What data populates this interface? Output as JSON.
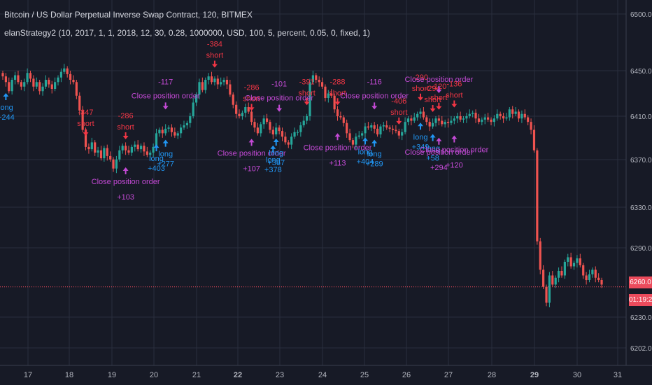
{
  "header": {
    "symbol_title": "Bitcoin / US Dollar Perpetual Inverse Swap Contract, 120, BITMEX",
    "study_title": "elanStrategy2 (10, 2017, 1, 1, 2018, 12, 30, 0.28, 1000000, USD, 100, 5, percent, 0.05, 0, fixed, 1)"
  },
  "price_axis": {
    "current_price_label": "6260.0",
    "countdown_label": "01:19:23"
  },
  "colors": {
    "background": "#171a26",
    "grid": "#2a2e3d",
    "up_candle": "#26a69a",
    "down_candle": "#ef5350",
    "long_signal": "#2196f3",
    "short_signal": "#f23645",
    "close_signal": "#c44ad6",
    "price_line": "#ec4b5c"
  },
  "chart_data": {
    "type": "candlestick",
    "title": "Bitcoin / US Dollar Perpetual Inverse Swap Contract, 120, BITMEX",
    "interval": "120",
    "xlabel": "",
    "ylabel": "",
    "ylim": [
      6195,
      6510
    ],
    "y_ticks": [
      "6500.0",
      "6450.0",
      "6410.0",
      "6370.0",
      "6330.0",
      "6290.0",
      "6230.0",
      "6202.0"
    ],
    "x_ticks": [
      "17",
      "18",
      "19",
      "20",
      "21",
      "22",
      "23",
      "24",
      "25",
      "26",
      "27",
      "28",
      "29",
      "30",
      "31"
    ],
    "grid": true,
    "current_price": 6260.0,
    "close_series": [
      6445,
      6440,
      6432,
      6442,
      6446,
      6440,
      6436,
      6440,
      6448,
      6443,
      6436,
      6440,
      6432,
      6436,
      6442,
      6438,
      6434,
      6440,
      6444,
      6449,
      6452,
      6447,
      6442,
      6440,
      6428,
      6415,
      6398,
      6383,
      6381,
      6387,
      6378,
      6380,
      6373,
      6382,
      6375,
      6372,
      6364,
      6372,
      6380,
      6384,
      6380,
      6378,
      6383,
      6385,
      6381,
      6384,
      6379,
      6376,
      6378,
      6383,
      6395,
      6398,
      6395,
      6399,
      6400,
      6396,
      6393,
      6395,
      6400,
      6402,
      6404,
      6410,
      6422,
      6429,
      6440,
      6433,
      6442,
      6445,
      6440,
      6443,
      6438,
      6440,
      6442,
      6438,
      6429,
      6420,
      6412,
      6410,
      6413,
      6418,
      6414,
      6405,
      6400,
      6395,
      6403,
      6408,
      6405,
      6398,
      6394,
      6400,
      6397,
      6392,
      6387,
      6385,
      6392,
      6396,
      6396,
      6402,
      6406,
      6410,
      6440,
      6446,
      6442,
      6440,
      6436,
      6426,
      6430,
      6428,
      6416,
      6410,
      6409,
      6404,
      6395,
      6389,
      6385,
      6392,
      6393,
      6395,
      6401,
      6400,
      6402,
      6399,
      6394,
      6401,
      6402,
      6400,
      6399,
      6398,
      6397,
      6393,
      6396,
      6405,
      6408,
      6406,
      6409,
      6412,
      6414,
      6409,
      6405,
      6401,
      6404,
      6408,
      6406,
      6403,
      6405,
      6404,
      6406,
      6408,
      6410,
      6407,
      6408,
      6410,
      6412,
      6413,
      6408,
      6405,
      6407,
      6409,
      6407,
      6405,
      6408,
      6412,
      6410,
      6408,
      6409,
      6416,
      6412,
      6414,
      6408,
      6412,
      6409,
      6405,
      6398,
      6380,
      6300,
      6275,
      6260,
      6246,
      6270,
      6262,
      6268,
      6274,
      6270,
      6282,
      6286,
      6278,
      6281,
      6285,
      6279,
      6270,
      6266,
      6271,
      6275,
      6268,
      6266,
      6262
    ],
    "signals": [
      {
        "type": "long",
        "label": "long",
        "profit": "+244",
        "bar": 1
      },
      {
        "type": "short",
        "label": "short",
        "profit": "-347",
        "bar": 27
      },
      {
        "type": "short",
        "label": "short",
        "profit": "-286",
        "bar": 40
      },
      {
        "type": "close",
        "label": "Close position order",
        "profit": "+103",
        "bar": 40
      },
      {
        "type": "long",
        "label": "long",
        "profit": "+403",
        "bar": 50
      },
      {
        "type": "long",
        "label": "long",
        "profit": "+277",
        "bar": 53
      },
      {
        "type": "close",
        "label": "Close position order",
        "profit": "-117",
        "bar": 53
      },
      {
        "type": "short",
        "label": "short",
        "profit": "-384",
        "bar": 69
      },
      {
        "type": "short",
        "label": "short",
        "profit": "-286",
        "bar": 81
      },
      {
        "type": "close",
        "label": "Close position order",
        "profit": "+107",
        "bar": 81
      },
      {
        "type": "long",
        "label": "long",
        "profit": "+378",
        "bar": 88
      },
      {
        "type": "long",
        "label": "long",
        "profit": "+367",
        "bar": 89
      },
      {
        "type": "close",
        "label": "Close position order",
        "profit": "-101",
        "bar": 90
      },
      {
        "type": "short",
        "label": "short",
        "profit": "-391",
        "bar": 99
      },
      {
        "type": "short",
        "label": "short",
        "profit": "-288",
        "bar": 109
      },
      {
        "type": "close",
        "label": "Close position order",
        "profit": "+113",
        "bar": 109
      },
      {
        "type": "long",
        "label": "long",
        "profit": "+404",
        "bar": 118
      },
      {
        "type": "long",
        "label": "long",
        "profit": "+289",
        "bar": 121
      },
      {
        "type": "close",
        "label": "Close position order",
        "profit": "-116",
        "bar": 121
      },
      {
        "type": "short",
        "label": "short",
        "profit": "-406",
        "bar": 129
      },
      {
        "type": "short",
        "label": "short",
        "profit": "-290",
        "bar": 136
      },
      {
        "type": "long",
        "label": "long",
        "profit": "+349",
        "bar": 136
      },
      {
        "type": "short",
        "label": "short",
        "profit": "-294",
        "bar": 140
      },
      {
        "type": "long",
        "label": "long",
        "profit": "+58",
        "bar": 140
      },
      {
        "type": "short",
        "label": "short",
        "profit": "-120",
        "bar": 142
      },
      {
        "type": "close",
        "label": "Close position order",
        "profit": "+294",
        "bar": 142
      },
      {
        "type": "close",
        "label": "Close position order",
        "profit": "",
        "bar": 142
      },
      {
        "type": "short",
        "label": "short",
        "profit": "-136",
        "bar": 147
      },
      {
        "type": "close",
        "label": "Close position order",
        "profit": "+120",
        "bar": 147
      }
    ]
  }
}
